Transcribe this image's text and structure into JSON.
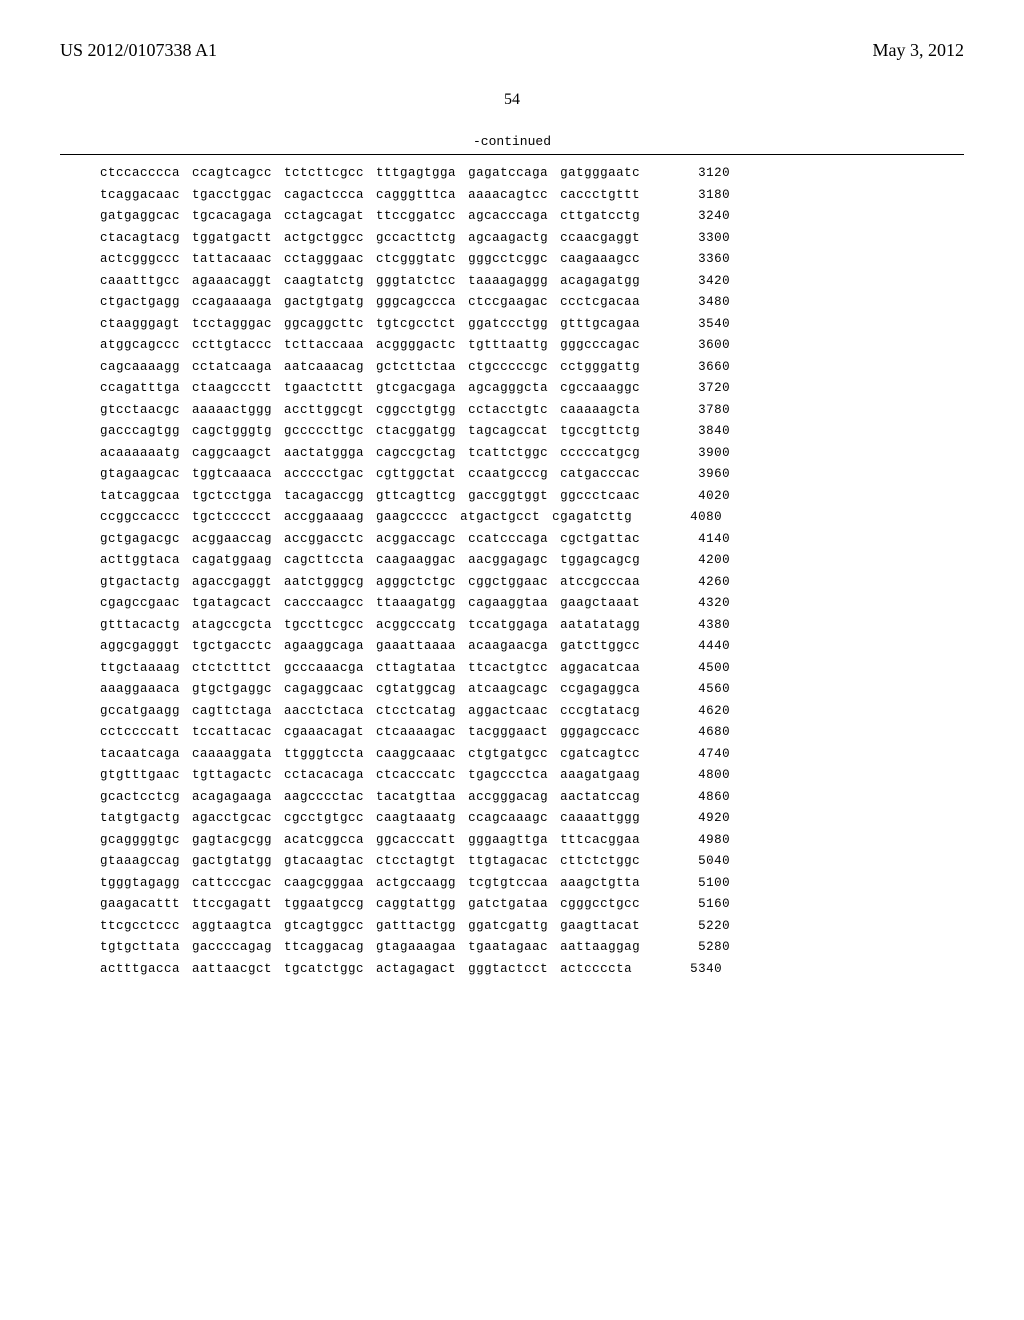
{
  "header": {
    "publication_number": "US 2012/0107338 A1",
    "publication_date": "May 3, 2012"
  },
  "page_number": "54",
  "continued_label": "-continued",
  "sequence": {
    "rows": [
      {
        "groups": [
          "ctccacccca",
          "ccagtcagcc",
          "tctcttcgcc",
          "tttgagtgga",
          "gagatccaga",
          "gatgggaatc"
        ],
        "pos": "3120"
      },
      {
        "groups": [
          "tcaggacaac",
          "tgacctggac",
          "cagactccca",
          "cagggtttca",
          "aaaacagtcc",
          "caccctgttt"
        ],
        "pos": "3180"
      },
      {
        "groups": [
          "gatgaggcac",
          "tgcacagaga",
          "cctagcagat",
          "ttccggatcc",
          "agcacccaga",
          "cttgatcctg"
        ],
        "pos": "3240"
      },
      {
        "groups": [
          "ctacagtacg",
          "tggatgactt",
          "actgctggcc",
          "gccacttctg",
          "agcaagactg",
          "ccaacgaggt"
        ],
        "pos": "3300"
      },
      {
        "groups": [
          "actcgggccc",
          "tattacaaac",
          "cctagggaac",
          "ctcgggtatc",
          "gggcctcggc",
          "caagaaagcc"
        ],
        "pos": "3360"
      },
      {
        "groups": [
          "caaatttgcc",
          "agaaacaggt",
          "caagtatctg",
          "gggtatctcc",
          "taaaagaggg",
          "acagagatgg"
        ],
        "pos": "3420"
      },
      {
        "groups": [
          "ctgactgagg",
          "ccagaaaaga",
          "gactgtgatg",
          "gggcagccca",
          "ctccgaagac",
          "ccctcgacaa"
        ],
        "pos": "3480"
      },
      {
        "groups": [
          "ctaagggagt",
          "tcctagggac",
          "ggcaggcttc",
          "tgtcgcctct",
          "ggatccctgg",
          "gtttgcagaa"
        ],
        "pos": "3540"
      },
      {
        "groups": [
          "atggcagccc",
          "ccttgtaccc",
          "tcttaccaaa",
          "acggggactc",
          "tgtttaattg",
          "gggcccagac"
        ],
        "pos": "3600"
      },
      {
        "groups": [
          "cagcaaaagg",
          "cctatcaaga",
          "aatcaaacag",
          "gctcttctaa",
          "ctgcccccgc",
          "cctgggattg"
        ],
        "pos": "3660"
      },
      {
        "groups": [
          "ccagatttga",
          "ctaagccctt",
          "tgaactcttt",
          "gtcgacgaga",
          "agcagggcta",
          "cgccaaaggc"
        ],
        "pos": "3720"
      },
      {
        "groups": [
          "gtcctaacgc",
          "aaaaactggg",
          "accttggcgt",
          "cggcctgtgg",
          "cctacctgtc",
          "caaaaagcta"
        ],
        "pos": "3780"
      },
      {
        "groups": [
          "gacccagtgg",
          "cagctgggtg",
          "gcccccttgc",
          "ctacggatgg",
          "tagcagccat",
          "tgccgttctg"
        ],
        "pos": "3840"
      },
      {
        "groups": [
          "acaaaaaatg",
          "caggcaagct",
          "aactatggga",
          "cagccgctag",
          "tcattctggc",
          "cccccatgcg"
        ],
        "pos": "3900"
      },
      {
        "groups": [
          "gtagaagcac",
          "tggtcaaaca",
          "accccctgac",
          "cgttggctat",
          "ccaatgcccg",
          "catgacccac"
        ],
        "pos": "3960"
      },
      {
        "groups": [
          "tatcaggcaa",
          "tgctcctgga",
          "tacagaccgg",
          "gttcagttcg",
          "gaccggtggt",
          "ggccctcaac"
        ],
        "pos": "4020"
      },
      {
        "groups": [
          "ccggccaccc",
          "tgctccccct",
          "accggaaaag",
          "gaagccccc",
          "atgactgcct",
          "cgagatcttg"
        ],
        "pos": "4080"
      },
      {
        "groups": [
          "gctgagacgc",
          "acggaaccag",
          "accggacctc",
          "acggaccagc",
          "ccatcccaga",
          "cgctgattac"
        ],
        "pos": "4140"
      },
      {
        "groups": [
          "acttggtaca",
          "cagatggaag",
          "cagcttccta",
          "caagaaggac",
          "aacggagagc",
          "tggagcagcg"
        ],
        "pos": "4200"
      },
      {
        "groups": [
          "gtgactactg",
          "agaccgaggt",
          "aatctgggcg",
          "agggctctgc",
          "cggctggaac",
          "atccgcccaa"
        ],
        "pos": "4260"
      },
      {
        "groups": [
          "cgagccgaac",
          "tgatagcact",
          "cacccaagcc",
          "ttaaagatgg",
          "cagaaggtaa",
          "gaagctaaat"
        ],
        "pos": "4320"
      },
      {
        "groups": [
          "gtttacactg",
          "atagccgcta",
          "tgccttcgcc",
          "acggcccatg",
          "tccatggaga",
          "aatatatagg"
        ],
        "pos": "4380"
      },
      {
        "groups": [
          "aggcgagggt",
          "tgctgacctc",
          "agaaggcaga",
          "gaaattaaaa",
          "acaagaacga",
          "gatcttggcc"
        ],
        "pos": "4440"
      },
      {
        "groups": [
          "ttgctaaaag",
          "ctctctttct",
          "gcccaaacga",
          "cttagtataa",
          "ttcactgtcc",
          "aggacatcaa"
        ],
        "pos": "4500"
      },
      {
        "groups": [
          "aaaggaaaca",
          "gtgctgaggc",
          "cagaggcaac",
          "cgtatggcag",
          "atcaagcagc",
          "ccgagaggca"
        ],
        "pos": "4560"
      },
      {
        "groups": [
          "gccatgaagg",
          "cagttctaga",
          "aacctctaca",
          "ctcctcatag",
          "aggactcaac",
          "cccgtatacg"
        ],
        "pos": "4620"
      },
      {
        "groups": [
          "cctccccatt",
          "tccattacac",
          "cgaaacagat",
          "ctcaaaagac",
          "tacgggaact",
          "gggagccacc"
        ],
        "pos": "4680"
      },
      {
        "groups": [
          "tacaatcaga",
          "caaaaggata",
          "ttgggtccta",
          "caaggcaaac",
          "ctgtgatgcc",
          "cgatcagtcc"
        ],
        "pos": "4740"
      },
      {
        "groups": [
          "gtgtttgaac",
          "tgttagactc",
          "cctacacaga",
          "ctcacccatc",
          "tgagccctca",
          "aaagatgaag"
        ],
        "pos": "4800"
      },
      {
        "groups": [
          "gcactcctcg",
          "acagagaaga",
          "aagcccctac",
          "tacatgttaa",
          "accgggacag",
          "aactatccag"
        ],
        "pos": "4860"
      },
      {
        "groups": [
          "tatgtgactg",
          "agacctgcac",
          "cgcctgtgcc",
          "caagtaaatg",
          "ccagcaaagc",
          "caaaattggg"
        ],
        "pos": "4920"
      },
      {
        "groups": [
          "gcaggggtgc",
          "gagtacgcgg",
          "acatcggcca",
          "ggcacccatt",
          "gggaagttga",
          "tttcacggaa"
        ],
        "pos": "4980"
      },
      {
        "groups": [
          "gtaaagccag",
          "gactgtatgg",
          "gtacaagtac",
          "ctcctagtgt",
          "ttgtagacac",
          "cttctctggc"
        ],
        "pos": "5040"
      },
      {
        "groups": [
          "tgggtagagg",
          "cattcccgac",
          "caagcgggaa",
          "actgccaagg",
          "tcgtgtccaa",
          "aaagctgtta"
        ],
        "pos": "5100"
      },
      {
        "groups": [
          "gaagacattt",
          "ttccgagatt",
          "tggaatgccg",
          "caggtattgg",
          "gatctgataa",
          "cgggcctgcc"
        ],
        "pos": "5160"
      },
      {
        "groups": [
          "ttcgcctccc",
          "aggtaagtca",
          "gtcagtggcc",
          "gatttactgg",
          "ggatcgattg",
          "gaagttacat"
        ],
        "pos": "5220"
      },
      {
        "groups": [
          "tgtgcttata",
          "gaccccagag",
          "ttcaggacag",
          "gtagaaagaa",
          "tgaatagaac",
          "aattaaggag"
        ],
        "pos": "5280"
      },
      {
        "groups": [
          "actttgacca",
          "aattaacgct",
          "tgcatctggc",
          "actagagact",
          "gggtactcct",
          "actccccta"
        ],
        "pos": "5340"
      }
    ]
  }
}
